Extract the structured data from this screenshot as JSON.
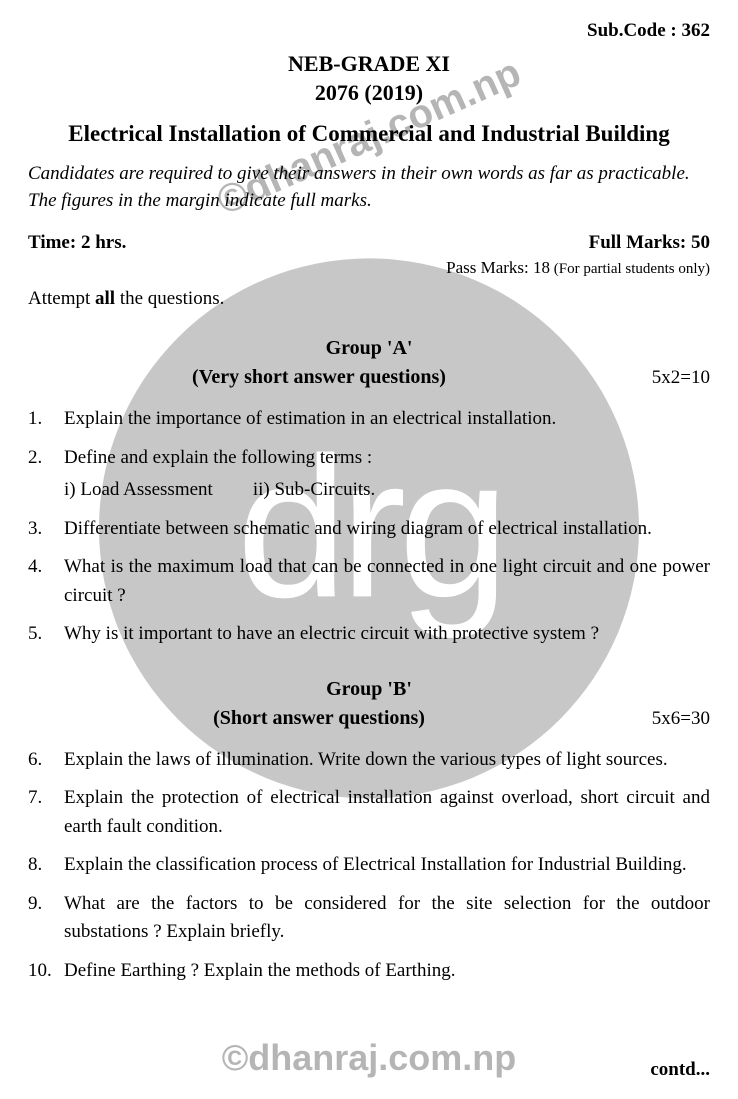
{
  "sub_code_label": "Sub.Code : 362",
  "header_line1": "NEB-GRADE XI",
  "header_line2": "2076 (2019)",
  "title": "Electrical Installation of Commercial and Industrial Building",
  "instructions": "Candidates are required to give their answers in their own words as far as practicable. The figures in the margin indicate full marks.",
  "time_label": "Time: 2 hrs.",
  "full_marks_label": "Full Marks: 50",
  "pass_marks_prefix": "Pass Marks:  18",
  "pass_marks_suffix": " (For partial students only)",
  "attempt_prefix": "Attempt ",
  "attempt_bold": "all",
  "attempt_suffix": " the questions.",
  "group_a": {
    "title": "Group 'A'",
    "subtitle": "(Very short answer questions)",
    "marks": "5x2=10"
  },
  "group_b": {
    "title": "Group 'B'",
    "subtitle": "(Short answer questions)",
    "marks": "5x6=30"
  },
  "questions_a": [
    {
      "num": "1.",
      "text": "Explain the importance of estimation in an electrical installation."
    },
    {
      "num": "2.",
      "text": "Define and explain the following terms :",
      "sub_i": "i) Load Assessment",
      "sub_ii": "ii) Sub-Circuits."
    },
    {
      "num": "3.",
      "text": "Differentiate between schematic and wiring diagram of electrical installation."
    },
    {
      "num": "4.",
      "text": "What is the maximum load that can be connected in one light circuit and one power circuit ?"
    },
    {
      "num": "5.",
      "text": "Why is it important to have an electric circuit with protective system ?"
    }
  ],
  "questions_b": [
    {
      "num": "6.",
      "text": "Explain the laws of illumination. Write down the various types of light sources."
    },
    {
      "num": "7.",
      "text": "Explain the protection of electrical installation against overload, short circuit and earth fault condition."
    },
    {
      "num": "8.",
      "text": "Explain the classification process of Electrical Installation for Industrial Building."
    },
    {
      "num": "9.",
      "text": "What are the factors to be considered for the site selection for the outdoor substations ? Explain briefly."
    },
    {
      "num": "10.",
      "text": "Define Earthing ? Explain the methods of Earthing."
    }
  ],
  "contd": "contd...",
  "watermark": {
    "text_top": "©dhanraj.com.np",
    "text_center": "drg",
    "text_bottom": "©dhanraj.com.np"
  }
}
